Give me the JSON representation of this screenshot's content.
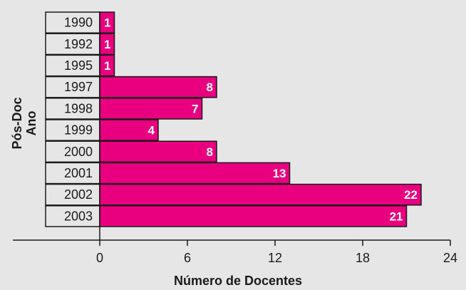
{
  "chart_data": {
    "type": "bar",
    "orientation": "horizontal",
    "categories": [
      "1990",
      "1992",
      "1995",
      "1997",
      "1998",
      "1999",
      "2000",
      "2001",
      "2002",
      "2003"
    ],
    "values": [
      1,
      1,
      1,
      8,
      7,
      4,
      8,
      13,
      22,
      21
    ],
    "xlabel": "Número de Docentes",
    "ylabel_lines": [
      "Pós-Doc",
      "Ano"
    ],
    "xticks": [
      "0",
      "6",
      "12",
      "18",
      "24"
    ],
    "xlim": [
      0,
      24
    ],
    "grid": false,
    "data_labels": true,
    "colors": {
      "bar": "#e8007f",
      "background": "#e6e6e6",
      "axis": "#1a1a1a",
      "label_on_bar": "#ffffff"
    }
  }
}
